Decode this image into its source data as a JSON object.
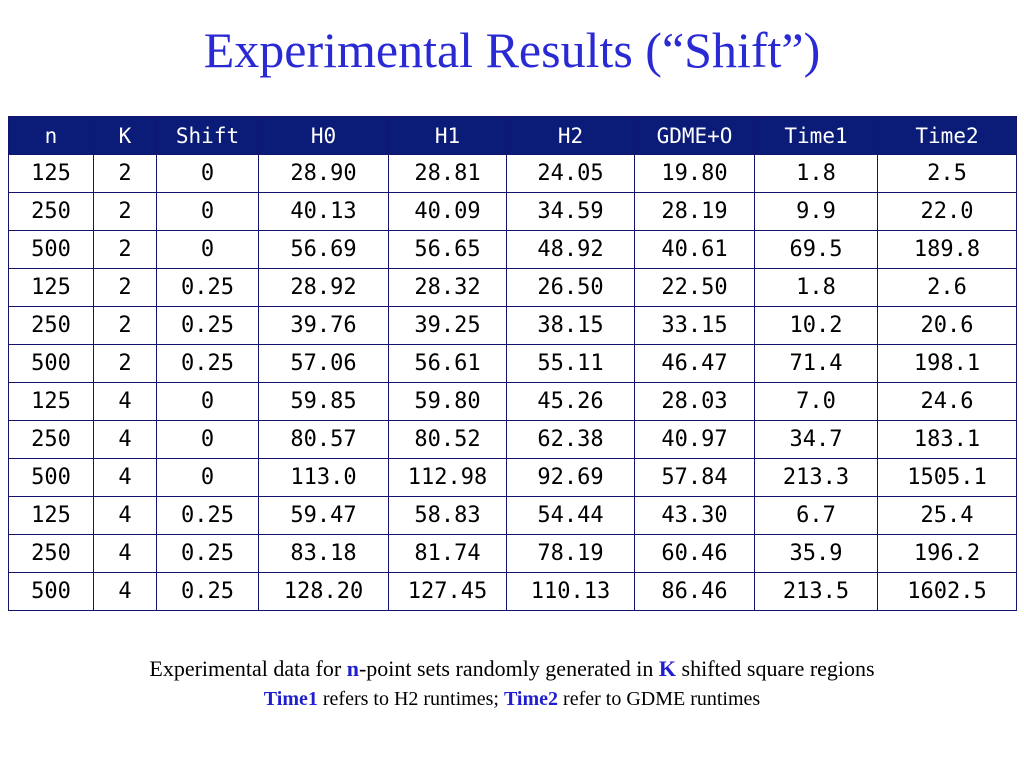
{
  "title": "Experimental Results (“Shift”)",
  "table": {
    "headers": [
      "n",
      "K",
      "Shift",
      "H0",
      "H1",
      "H2",
      "GDME+O",
      "Time1",
      "Time2"
    ],
    "rows": [
      [
        "125",
        "2",
        "0",
        "28.90",
        "28.81",
        "24.05",
        "19.80",
        "1.8",
        "2.5"
      ],
      [
        "250",
        "2",
        "0",
        "40.13",
        "40.09",
        "34.59",
        "28.19",
        "9.9",
        "22.0"
      ],
      [
        "500",
        "2",
        "0",
        "56.69",
        "56.65",
        "48.92",
        "40.61",
        "69.5",
        "189.8"
      ],
      [
        "125",
        "2",
        "0.25",
        "28.92",
        "28.32",
        "26.50",
        "22.50",
        "1.8",
        "2.6"
      ],
      [
        "250",
        "2",
        "0.25",
        "39.76",
        "39.25",
        "38.15",
        "33.15",
        "10.2",
        "20.6"
      ],
      [
        "500",
        "2",
        "0.25",
        "57.06",
        "56.61",
        "55.11",
        "46.47",
        "71.4",
        "198.1"
      ],
      [
        "125",
        "4",
        "0",
        "59.85",
        "59.80",
        "45.26",
        "28.03",
        "7.0",
        "24.6"
      ],
      [
        "250",
        "4",
        "0",
        "80.57",
        "80.52",
        "62.38",
        "40.97",
        "34.7",
        "183.1"
      ],
      [
        "500",
        "4",
        "0",
        "113.0",
        "112.98",
        "92.69",
        "57.84",
        "213.3",
        "1505.1"
      ],
      [
        "125",
        "4",
        "0.25",
        "59.47",
        "58.83",
        "54.44",
        "43.30",
        "6.7",
        "25.4"
      ],
      [
        "250",
        "4",
        "0.25",
        "83.18",
        "81.74",
        "78.19",
        "60.46",
        "35.9",
        "196.2"
      ],
      [
        "500",
        "4",
        "0.25",
        "128.20",
        "127.45",
        "110.13",
        "86.46",
        "213.5",
        "1602.5"
      ]
    ]
  },
  "caption": {
    "line1": {
      "part1": "Experimental data for ",
      "n": "n",
      "part2": "-point sets randomly generated in ",
      "k": "K",
      "part3": " shifted square regions"
    },
    "line2": {
      "time1": "Time1",
      "part1": " refers to H2 runtimes; ",
      "time2": "Time2",
      "part2": " refer to GDME runtimes"
    }
  },
  "colors": {
    "title": "#2a2ad4",
    "header_background": "#0a1c78",
    "header_text": "#ffffff",
    "highlight": "#1f1fd0",
    "grid": "#14146e"
  }
}
